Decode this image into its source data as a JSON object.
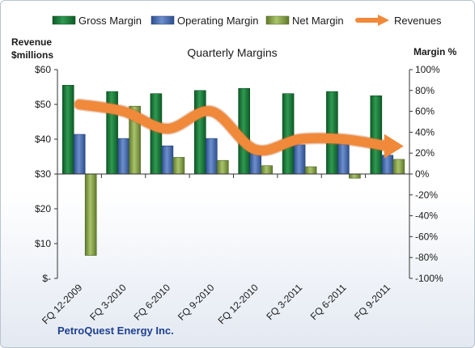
{
  "chart_data": {
    "type": "bar",
    "title": "Quarterly Margins",
    "y_left_label_lines": [
      "Revenue",
      "$millions"
    ],
    "y_right_label": "Margin %",
    "company": "PetroQuest Energy Inc.",
    "categories": [
      "FQ 12-2009",
      "FQ 3-2010",
      "FQ 6-2010",
      "FQ 9-2010",
      "FQ 12-2010",
      "FQ 3-2011",
      "FQ 6-2011",
      "FQ 9-2011"
    ],
    "series": [
      {
        "name": "Gross Margin",
        "kind": "bar",
        "axis": "right",
        "color": "#1e7a3c",
        "values": [
          85,
          79,
          77,
          80,
          82,
          77,
          79,
          75
        ]
      },
      {
        "name": "Operating Margin",
        "kind": "bar",
        "axis": "right",
        "color": "#4a6fb5",
        "values": [
          38,
          34,
          27,
          34,
          25,
          28,
          31,
          18
        ]
      },
      {
        "name": "Net Margin",
        "kind": "bar",
        "axis": "right",
        "color": "#8aa64a",
        "values": [
          -78,
          65,
          16,
          13,
          8,
          7,
          -4,
          14
        ]
      },
      {
        "name": "Revenues",
        "kind": "line",
        "axis": "left",
        "color": "#f0893a",
        "values": [
          50,
          48,
          43,
          48,
          37,
          40,
          40,
          38
        ]
      }
    ],
    "y_left": {
      "min": 0,
      "max": 60,
      "ticks": [
        "$-",
        "$10",
        "$20",
        "$30",
        "$40",
        "$50",
        "$60"
      ]
    },
    "y_right": {
      "min": -100,
      "max": 100,
      "ticks": [
        "-100%",
        "-80%",
        "-60%",
        "-40%",
        "-20%",
        "0%",
        "20%",
        "40%",
        "60%",
        "80%",
        "100%"
      ]
    },
    "grid": false,
    "legend": "top"
  }
}
